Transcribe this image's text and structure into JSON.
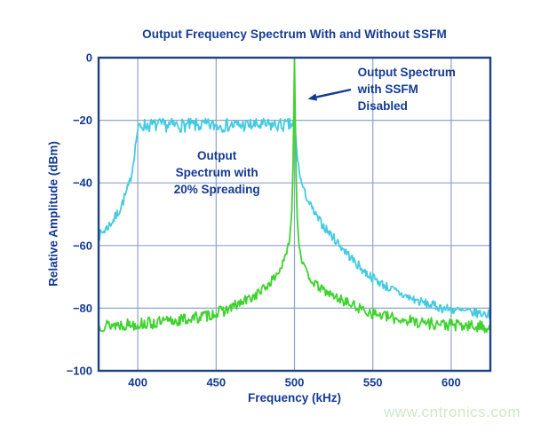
{
  "watermark": {
    "text": "www.cntronics.com",
    "color": "#cde9c5"
  },
  "chart_data": {
    "type": "line",
    "title": "Output Frequency Spectrum With and Without SSFM",
    "xlabel": "Frequency (kHz)",
    "ylabel": "Relative Amplitude (dBm)",
    "xlim": [
      375,
      625
    ],
    "ylim": [
      -100,
      0
    ],
    "grid": true,
    "legend_position": "none",
    "xticks": {
      "values": [
        400,
        450,
        500,
        550,
        600
      ],
      "labels": [
        "400",
        "450",
        "500",
        "550",
        "600"
      ]
    },
    "yticks": {
      "values": [
        0,
        -20,
        -40,
        -60,
        -80,
        -100
      ],
      "labels": [
        "0",
        "−20",
        "−40",
        "−60",
        "−80",
        "−100"
      ]
    },
    "colors": {
      "text_navy": "#143a93",
      "frame": "#1d4283",
      "grid": "#8ea3cb",
      "spreading_trace": "#45cbe1",
      "disabled_trace": "#3fd32e"
    },
    "series": [
      {
        "id": "spreading",
        "name": "Output Spectrum with 20% Spreading",
        "color": "#45cbe1",
        "seed": 7,
        "sample_step_khz": 0.6,
        "envelope_points_khz_dbm_noise": [
          [
            375,
            -57,
            1.6
          ],
          [
            380,
            -54.5,
            1.6
          ],
          [
            385,
            -51.5,
            1.6
          ],
          [
            389,
            -48,
            1.6
          ],
          [
            392,
            -44,
            1.6
          ],
          [
            394.5,
            -40.5,
            1.4
          ],
          [
            396.5,
            -36,
            1.2
          ],
          [
            398,
            -30,
            1.2
          ],
          [
            399.3,
            -25,
            1
          ],
          [
            400.5,
            -22,
            1
          ],
          [
            402,
            -21.6,
            2.2
          ],
          [
            497,
            -21.6,
            2.2
          ],
          [
            499.5,
            -21.3,
            1.5
          ],
          [
            500.6,
            -24,
            1
          ],
          [
            501.5,
            -30,
            1
          ],
          [
            502.5,
            -34.5,
            1
          ],
          [
            504,
            -39,
            1.2
          ],
          [
            506,
            -42.5,
            1.2
          ],
          [
            509,
            -46,
            1.3
          ],
          [
            513,
            -50,
            1.4
          ],
          [
            518,
            -53.5,
            1.5
          ],
          [
            524,
            -57,
            1.5
          ],
          [
            531,
            -61,
            1.5
          ],
          [
            538,
            -65,
            1.5
          ],
          [
            545,
            -68.5,
            1.5
          ],
          [
            552,
            -71,
            1.5
          ],
          [
            560,
            -73.5,
            1.5
          ],
          [
            570,
            -76,
            1.5
          ],
          [
            582,
            -78.3,
            1.5
          ],
          [
            595,
            -80,
            1.5
          ],
          [
            610,
            -81.2,
            1.5
          ],
          [
            625,
            -82,
            1.5
          ]
        ]
      },
      {
        "id": "ssfm-disabled",
        "name": "Output Spectrum with SSFM Disabled",
        "color": "#3fd32e",
        "seed": 13,
        "sample_step_khz": 0.6,
        "envelope_points_khz_dbm_noise": [
          [
            375,
            -85.5,
            2
          ],
          [
            400,
            -85,
            2
          ],
          [
            415,
            -84.6,
            2
          ],
          [
            430,
            -83.6,
            2
          ],
          [
            443,
            -82.5,
            1.9
          ],
          [
            455,
            -80.8,
            1.8
          ],
          [
            465,
            -78.6,
            1.8
          ],
          [
            474,
            -76.2,
            1.6
          ],
          [
            482,
            -73.2,
            1.5
          ],
          [
            488,
            -69.8,
            1.4
          ],
          [
            492,
            -66.5,
            1.2
          ],
          [
            495,
            -62.5,
            1
          ],
          [
            497,
            -57.5,
            0.9
          ],
          [
            498.3,
            -49,
            0.7
          ],
          [
            499.1,
            -34,
            0.5
          ],
          [
            499.6,
            -16,
            0.3
          ],
          [
            500,
            -0.3,
            0.15
          ],
          [
            500.45,
            -18,
            0.3
          ],
          [
            501,
            -37,
            0.5
          ],
          [
            501.8,
            -52,
            0.7
          ],
          [
            503,
            -60,
            0.9
          ],
          [
            505,
            -65.3,
            1
          ],
          [
            508,
            -69,
            1.1
          ],
          [
            512,
            -71.8,
            1.3
          ],
          [
            517,
            -73.8,
            1.4
          ],
          [
            524,
            -76,
            1.5
          ],
          [
            532,
            -77.8,
            1.6
          ],
          [
            541,
            -80,
            1.7
          ],
          [
            551,
            -81.8,
            1.8
          ],
          [
            563,
            -83.2,
            1.8
          ],
          [
            578,
            -84.3,
            1.9
          ],
          [
            595,
            -85.2,
            2
          ],
          [
            610,
            -85.8,
            2
          ],
          [
            625,
            -86,
            2
          ]
        ]
      }
    ],
    "annotations": [
      {
        "id": "ssfm-disabled",
        "text": "Output Spectrum\nwith SSFM\nDisabled",
        "align": "left",
        "x_khz": 540.3,
        "y_dbm": -2.0,
        "arrow_from_khz_dbm": [
          536,
          -10.2
        ],
        "arrow_to_khz_dbm": [
          508.5,
          -13.2
        ]
      },
      {
        "id": "spreading",
        "text": "Output\nSpectrum with\n20% Spreading",
        "align": "center",
        "x_khz": 450.5,
        "y_dbm": -28.6
      }
    ]
  }
}
